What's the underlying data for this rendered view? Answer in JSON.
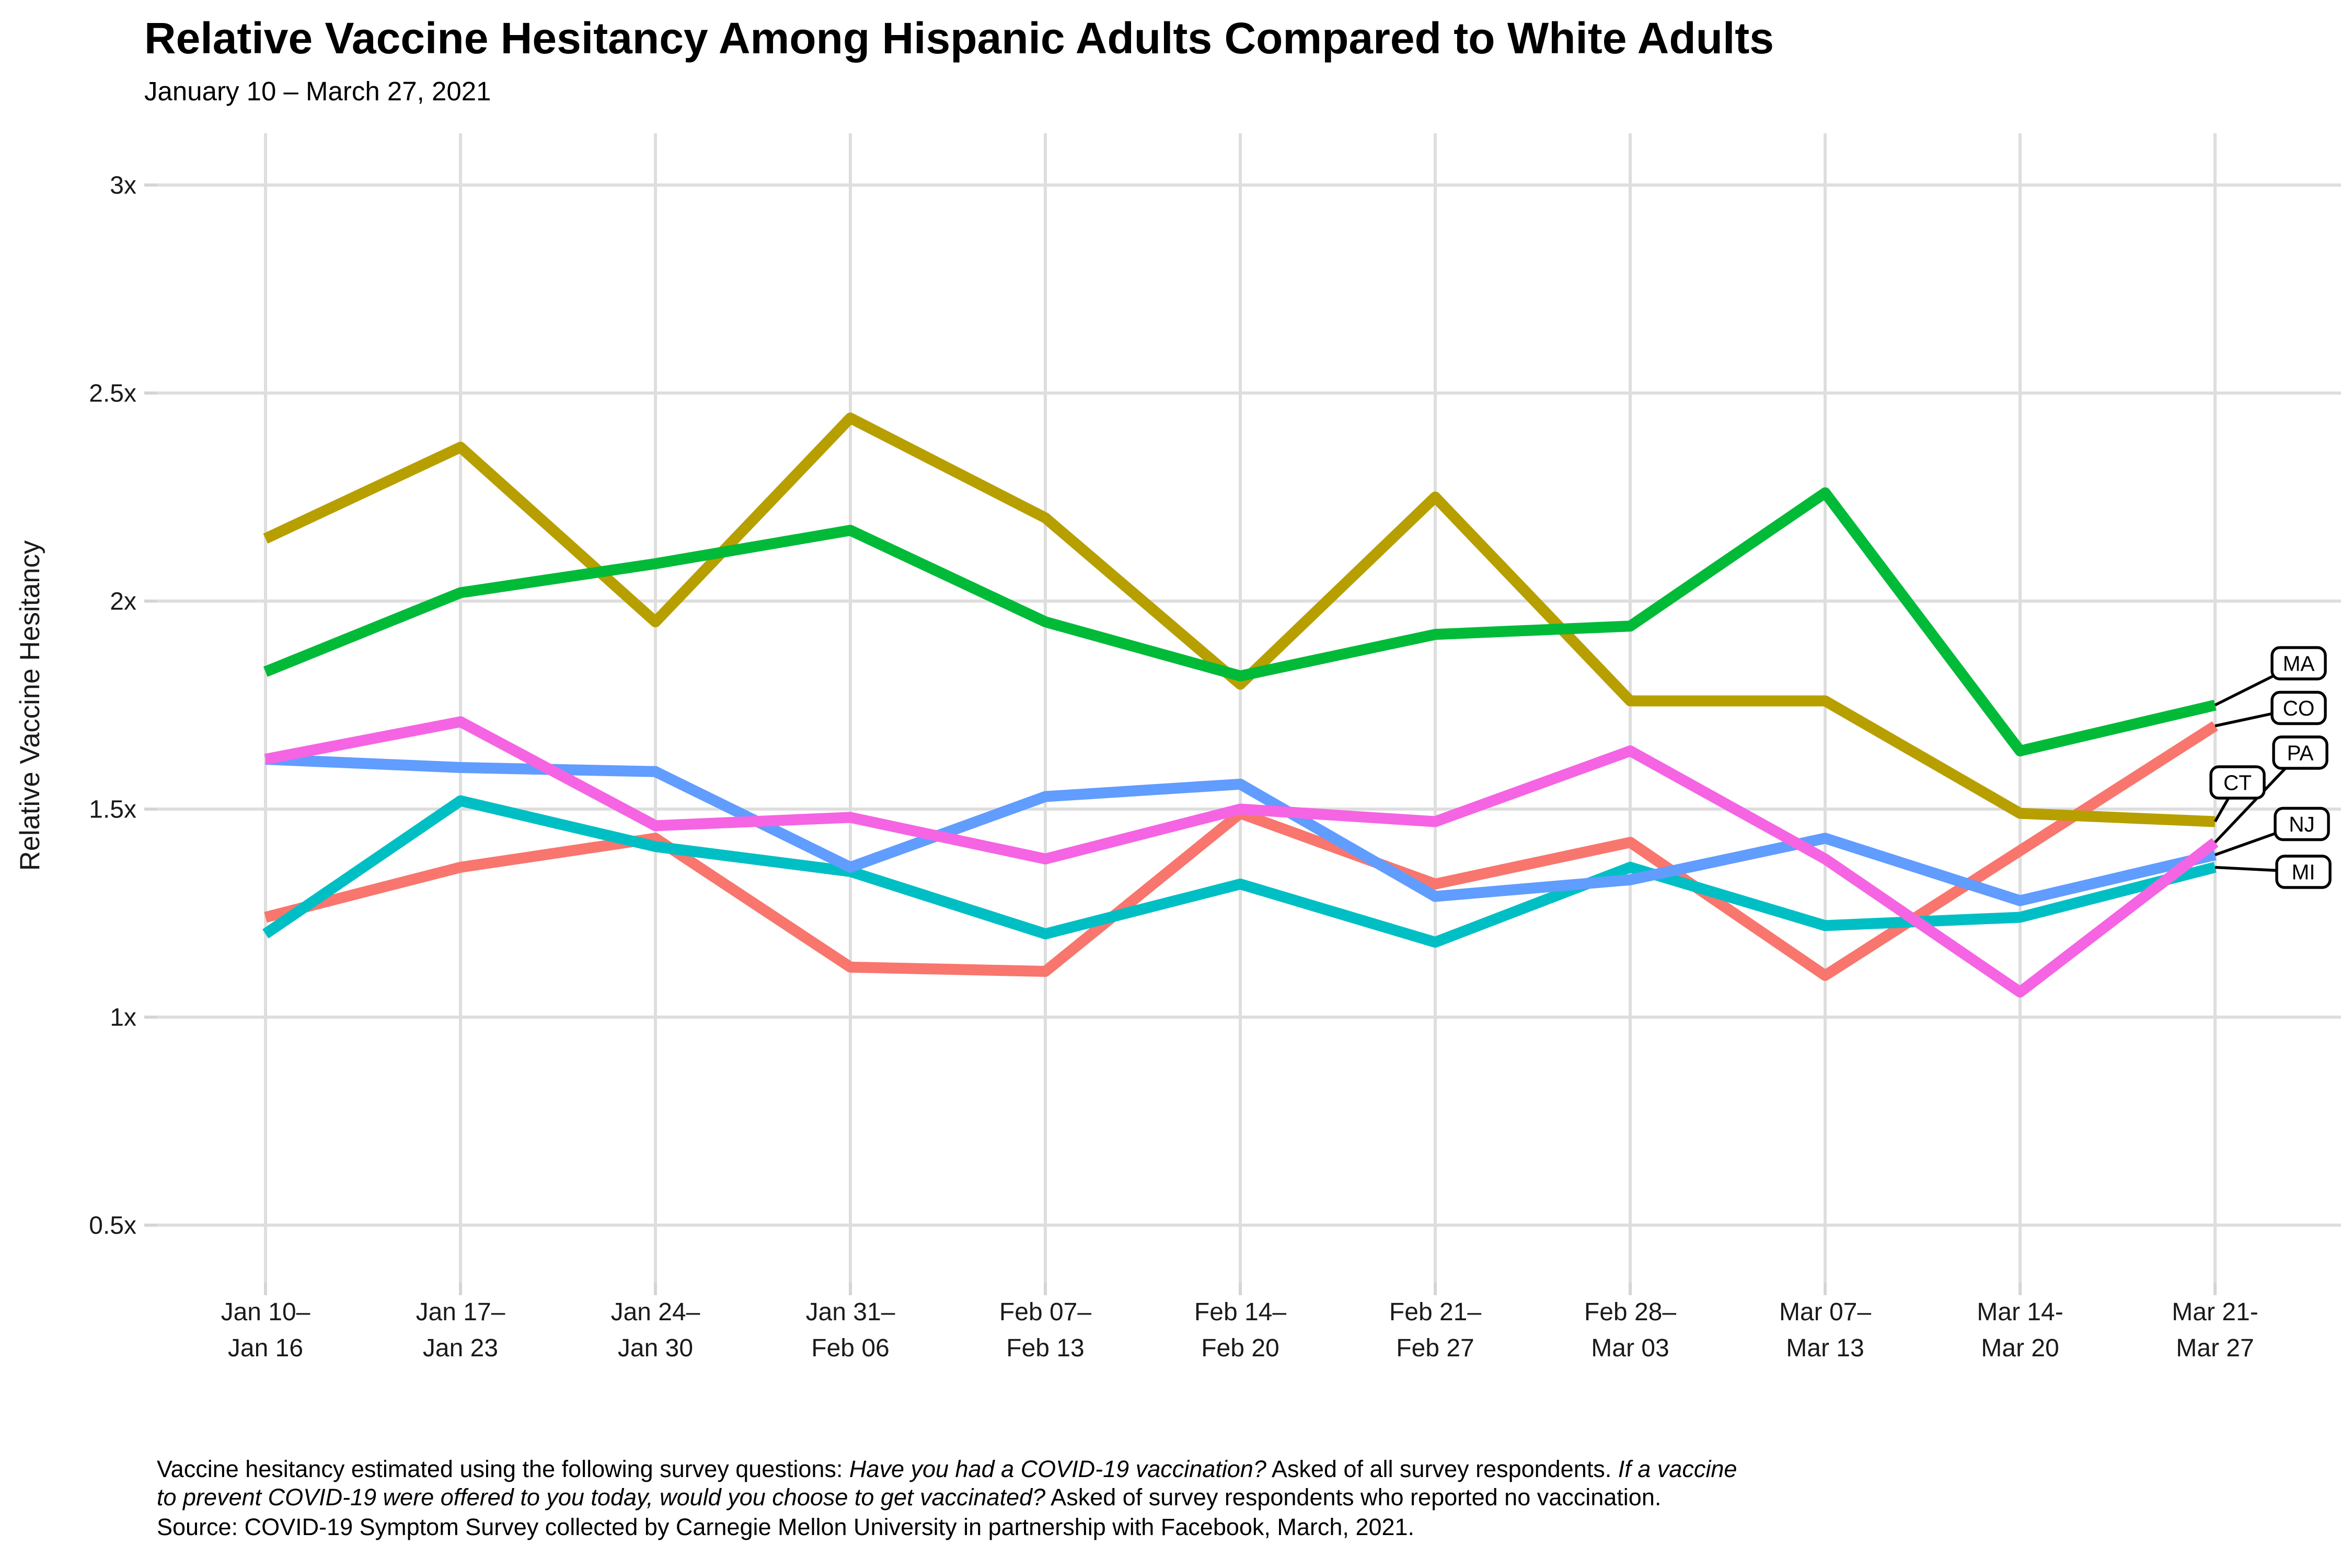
{
  "page": {
    "background": "#FFFFFF"
  },
  "chart_data": {
    "type": "line",
    "title": "Relative Vaccine Hesitancy Among Hispanic Adults Compared to White Adults",
    "subtitle": "January 10 – March 27, 2021",
    "ylabel": "Relative Vaccine Hesitancy",
    "xlabel": "",
    "categories": [
      [
        "Jan 10–",
        "Jan 16"
      ],
      [
        "Jan 17–",
        "Jan 23"
      ],
      [
        "Jan 24–",
        "Jan 30"
      ],
      [
        "Jan 31–",
        "Feb 06"
      ],
      [
        "Feb 07–",
        "Feb 13"
      ],
      [
        "Feb 14–",
        "Feb 20"
      ],
      [
        "Feb 21–",
        "Feb 27"
      ],
      [
        "Feb 28–",
        "Mar 03"
      ],
      [
        "Mar 07–",
        "Mar 13"
      ],
      [
        "Mar 14-",
        "Mar 20"
      ],
      [
        "Mar 21-",
        "Mar 27"
      ]
    ],
    "y_ticks": [
      {
        "value": 3.0,
        "label": "3x"
      },
      {
        "value": 2.5,
        "label": "2.5x"
      },
      {
        "value": 2.0,
        "label": "2x"
      },
      {
        "value": 1.5,
        "label": "1.5x"
      },
      {
        "value": 1.0,
        "label": "1x"
      },
      {
        "value": 0.5,
        "label": "0.5x"
      }
    ],
    "ylim": [
      0.36,
      3.12
    ],
    "grid": true,
    "legend_position": "end-of-line state labels at right edge",
    "series": [
      {
        "name": "CO",
        "color": "#F8766D",
        "values": [
          1.24,
          1.36,
          1.43,
          1.12,
          1.11,
          1.49,
          1.32,
          1.42,
          1.1,
          1.4,
          1.7
        ]
      },
      {
        "name": "CT",
        "color": "#B79F00",
        "values": [
          2.15,
          2.37,
          1.95,
          2.44,
          2.2,
          1.8,
          2.25,
          1.76,
          1.76,
          1.49,
          1.47
        ]
      },
      {
        "name": "MA",
        "color": "#00BA38",
        "values": [
          1.83,
          2.02,
          2.09,
          2.17,
          1.95,
          1.82,
          1.92,
          1.94,
          2.26,
          1.64,
          1.75
        ]
      },
      {
        "name": "MI",
        "color": "#00BFC4",
        "values": [
          1.2,
          1.52,
          1.41,
          1.35,
          1.2,
          1.32,
          1.18,
          1.36,
          1.22,
          1.24,
          1.36
        ]
      },
      {
        "name": "NJ",
        "color": "#619CFF",
        "values": [
          1.62,
          1.6,
          1.59,
          1.36,
          1.53,
          1.56,
          1.29,
          1.33,
          1.43,
          1.28,
          1.39
        ]
      },
      {
        "name": "PA",
        "color": "#F564E3",
        "values": [
          1.62,
          1.71,
          1.46,
          1.48,
          1.38,
          1.5,
          1.47,
          1.64,
          1.38,
          1.06,
          1.42
        ]
      }
    ]
  },
  "caption": {
    "lines": [
      [
        {
          "text": "Vaccine hesitancy estimated using the following survey questions: ",
          "italic": false
        },
        {
          "text": "Have you had a COVID-19 vaccination?",
          "italic": true
        },
        {
          "text": " Asked of all survey respondents. ",
          "italic": false
        },
        {
          "text": "If a vaccine",
          "italic": true
        }
      ],
      [
        {
          "text": "to prevent COVID-19 were offered to you today, would you choose to get vaccinated?",
          "italic": true
        },
        {
          "text": " Asked of survey respondents who reported no vaccination.",
          "italic": false
        }
      ],
      [
        {
          "text": "Source: COVID-19 Symptom Survey collected by Carnegie Mellon University in partnership with Facebook, March, 2021.",
          "italic": false
        }
      ]
    ]
  },
  "colors": {
    "gridline": "#DEDEDE",
    "tick": "#D5D5D5",
    "axis_text": "#1A1A1A",
    "label_box_border": "#000000",
    "label_box_fill": "#FFFFFF",
    "leader_line": "#000000"
  }
}
